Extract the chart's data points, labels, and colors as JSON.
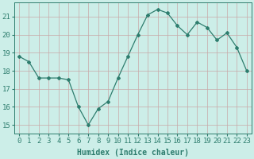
{
  "x": [
    0,
    1,
    2,
    3,
    4,
    5,
    6,
    7,
    8,
    9,
    10,
    11,
    12,
    13,
    14,
    15,
    16,
    17,
    18,
    19,
    20,
    21,
    22,
    23
  ],
  "y": [
    18.8,
    18.5,
    17.6,
    17.6,
    17.6,
    17.5,
    16.0,
    15.0,
    15.9,
    16.3,
    17.6,
    18.8,
    20.0,
    21.1,
    21.4,
    21.2,
    20.5,
    20.0,
    20.7,
    20.4,
    19.7,
    20.1,
    19.3,
    18.0
  ],
  "line_color": "#2e7d6e",
  "marker": "D",
  "marker_size": 2.0,
  "bg_color": "#cceee8",
  "grid_color_v": "#c8a8a8",
  "grid_color_h": "#c8a8a8",
  "xlabel": "Humidex (Indice chaleur)",
  "ylabel_ticks": [
    15,
    16,
    17,
    18,
    19,
    20,
    21
  ],
  "xtick_labels": [
    "0",
    "1",
    "2",
    "3",
    "4",
    "5",
    "6",
    "7",
    "8",
    "9",
    "10",
    "11",
    "12",
    "13",
    "14",
    "15",
    "16",
    "17",
    "18",
    "19",
    "20",
    "21",
    "22",
    "23"
  ],
  "ylim": [
    14.5,
    21.8
  ],
  "xlim": [
    -0.5,
    23.5
  ],
  "tick_color": "#2e7d6e",
  "label_color": "#2e7d6e",
  "font_size_label": 7,
  "font_size_tick": 6.5
}
